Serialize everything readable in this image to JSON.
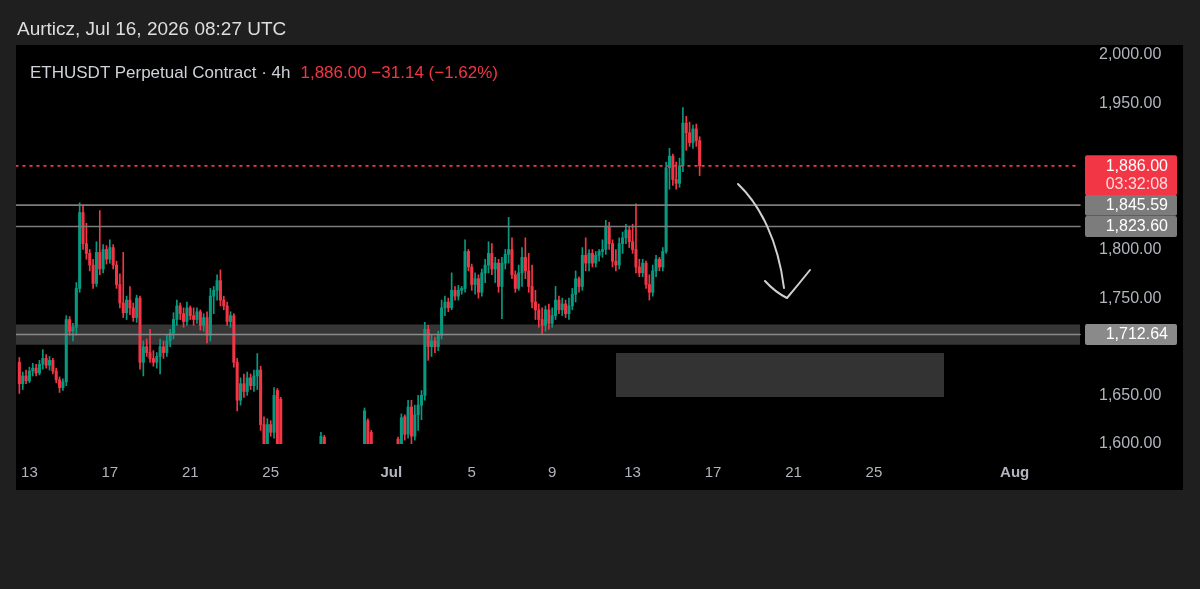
{
  "chart_data": {
    "type": "candlestick",
    "title": "ETHUSDT Perpetual Contract · 4h",
    "subtitle": "1,886.00 −31.14 (−1.62%)",
    "annotations": [
      "Aurticz, Jul 16, 2026 08:27 UTC",
      "03:32:08"
    ],
    "x": [
      "2026-06-12T12:00",
      "2026-06-12T16:00",
      "2026-06-12T20:00",
      "2026-06-13T00:00",
      "2026-06-13T04:00",
      "2026-06-13T08:00",
      "2026-06-13T12:00",
      "2026-06-13T16:00",
      "2026-06-13T20:00",
      "2026-06-14T00:00",
      "2026-06-14T04:00",
      "2026-06-14T08:00",
      "2026-06-14T12:00",
      "2026-06-14T16:00",
      "2026-06-14T20:00",
      "2026-06-15T00:00",
      "2026-06-15T04:00",
      "2026-06-15T08:00",
      "2026-06-15T12:00",
      "2026-06-15T16:00",
      "2026-06-15T20:00",
      "2026-06-16T00:00",
      "2026-06-16T04:00",
      "2026-06-16T08:00",
      "2026-06-16T12:00",
      "2026-06-16T16:00",
      "2026-06-16T20:00",
      "2026-06-17T00:00",
      "2026-06-17T04:00",
      "2026-06-17T08:00",
      "2026-06-17T12:00",
      "2026-06-17T16:00",
      "2026-06-17T20:00",
      "2026-06-18T00:00",
      "2026-06-18T04:00",
      "2026-06-18T08:00",
      "2026-06-18T12:00",
      "2026-06-18T16:00",
      "2026-06-18T20:00",
      "2026-06-19T00:00",
      "2026-06-19T04:00",
      "2026-06-19T08:00",
      "2026-06-19T12:00",
      "2026-06-19T16:00",
      "2026-06-19T20:00",
      "2026-06-20T00:00",
      "2026-06-20T04:00",
      "2026-06-20T08:00",
      "2026-06-20T12:00",
      "2026-06-20T16:00",
      "2026-06-20T20:00",
      "2026-06-21T00:00",
      "2026-06-21T04:00",
      "2026-06-21T08:00",
      "2026-06-21T12:00",
      "2026-06-21T16:00",
      "2026-06-21T20:00",
      "2026-06-22T00:00",
      "2026-06-22T04:00",
      "2026-06-22T08:00",
      "2026-06-22T12:00",
      "2026-06-22T16:00",
      "2026-06-22T20:00",
      "2026-06-23T00:00",
      "2026-06-23T04:00",
      "2026-06-23T08:00",
      "2026-06-23T12:00",
      "2026-06-23T16:00",
      "2026-06-23T20:00",
      "2026-06-24T00:00",
      "2026-06-24T04:00",
      "2026-06-24T08:00",
      "2026-06-24T12:00",
      "2026-06-24T16:00",
      "2026-06-24T20:00",
      "2026-06-25T00:00",
      "2026-06-25T04:00",
      "2026-06-25T08:00",
      "2026-06-25T12:00",
      "2026-06-27T12:00",
      "2026-06-27T16:00",
      "2026-06-29T16:00",
      "2026-06-29T20:00",
      "2026-06-30T00:00",
      "2026-07-01T08:00",
      "2026-07-01T12:00",
      "2026-07-01T16:00",
      "2026-07-01T20:00",
      "2026-07-02T00:00",
      "2026-07-02T04:00",
      "2026-07-02T08:00",
      "2026-07-02T12:00",
      "2026-07-02T16:00",
      "2026-07-02T20:00",
      "2026-07-03T00:00",
      "2026-07-03T04:00",
      "2026-07-03T08:00",
      "2026-07-03T12:00",
      "2026-07-03T16:00",
      "2026-07-03T20:00",
      "2026-07-04T00:00",
      "2026-07-04T04:00",
      "2026-07-04T08:00",
      "2026-07-04T12:00",
      "2026-07-04T16:00",
      "2026-07-04T20:00",
      "2026-07-05T00:00",
      "2026-07-05T04:00",
      "2026-07-05T08:00",
      "2026-07-05T12:00",
      "2026-07-05T16:00",
      "2026-07-05T20:00",
      "2026-07-06T00:00",
      "2026-07-06T04:00",
      "2026-07-06T08:00",
      "2026-07-06T12:00",
      "2026-07-06T16:00",
      "2026-07-06T20:00",
      "2026-07-07T00:00",
      "2026-07-07T04:00",
      "2026-07-07T08:00",
      "2026-07-07T12:00",
      "2026-07-07T16:00",
      "2026-07-07T20:00",
      "2026-07-08T00:00",
      "2026-07-08T04:00",
      "2026-07-08T08:00",
      "2026-07-08T12:00",
      "2026-07-08T16:00",
      "2026-07-08T20:00",
      "2026-07-09T00:00",
      "2026-07-09T04:00",
      "2026-07-09T08:00",
      "2026-07-09T12:00",
      "2026-07-09T16:00",
      "2026-07-09T20:00",
      "2026-07-10T00:00",
      "2026-07-10T04:00",
      "2026-07-10T08:00",
      "2026-07-10T12:00",
      "2026-07-10T16:00",
      "2026-07-10T20:00",
      "2026-07-11T00:00",
      "2026-07-11T04:00",
      "2026-07-11T08:00",
      "2026-07-11T12:00",
      "2026-07-11T16:00",
      "2026-07-11T20:00",
      "2026-07-12T00:00",
      "2026-07-12T04:00",
      "2026-07-12T08:00",
      "2026-07-12T12:00",
      "2026-07-12T16:00",
      "2026-07-12T20:00",
      "2026-07-13T00:00",
      "2026-07-13T04:00",
      "2026-07-13T08:00",
      "2026-07-13T12:00",
      "2026-07-13T16:00",
      "2026-07-13T20:00",
      "2026-07-14T00:00",
      "2026-07-14T04:00",
      "2026-07-14T08:00",
      "2026-07-14T12:00",
      "2026-07-14T16:00",
      "2026-07-14T20:00",
      "2026-07-15T00:00",
      "2026-07-15T04:00",
      "2026-07-15T08:00",
      "2026-07-15T12:00",
      "2026-07-15T16:00",
      "2026-07-15T20:00",
      "2026-07-16T00:00",
      "2026-07-16T04:00",
      "2026-07-16T08:00"
    ],
    "ohlc": [
      [
        1684,
        1689,
        1652,
        1662
      ],
      [
        1662,
        1674,
        1656,
        1670
      ],
      [
        1670,
        1676,
        1662,
        1665
      ],
      [
        1665,
        1679,
        1663,
        1675
      ],
      [
        1675,
        1683,
        1670,
        1678
      ],
      [
        1678,
        1682,
        1670,
        1673
      ],
      [
        1673,
        1686,
        1671,
        1682
      ],
      [
        1682,
        1697,
        1677,
        1688
      ],
      [
        1688,
        1692,
        1678,
        1681
      ],
      [
        1681,
        1690,
        1676,
        1686
      ],
      [
        1686,
        1688,
        1672,
        1675
      ],
      [
        1675,
        1678,
        1663,
        1666
      ],
      [
        1666,
        1669,
        1653,
        1658
      ],
      [
        1658,
        1667,
        1655,
        1664
      ],
      [
        1664,
        1732,
        1660,
        1728
      ],
      [
        1728,
        1731,
        1712,
        1716
      ],
      [
        1716,
        1724,
        1706,
        1720
      ],
      [
        1720,
        1766,
        1712,
        1760
      ],
      [
        1760,
        1848,
        1756,
        1838
      ],
      [
        1838,
        1846,
        1800,
        1806
      ],
      [
        1806,
        1827,
        1790,
        1796
      ],
      [
        1796,
        1800,
        1778,
        1784
      ],
      [
        1784,
        1790,
        1760,
        1765
      ],
      [
        1765,
        1808,
        1762,
        1797
      ],
      [
        1797,
        1840,
        1774,
        1780
      ],
      [
        1780,
        1805,
        1776,
        1800
      ],
      [
        1800,
        1804,
        1785,
        1790
      ],
      [
        1790,
        1810,
        1786,
        1802
      ],
      [
        1802,
        1805,
        1780,
        1784
      ],
      [
        1784,
        1788,
        1760,
        1764
      ],
      [
        1764,
        1775,
        1740,
        1745
      ],
      [
        1745,
        1797,
        1730,
        1735
      ],
      [
        1735,
        1752,
        1728,
        1748
      ],
      [
        1748,
        1762,
        1733,
        1740
      ],
      [
        1740,
        1745,
        1726,
        1730
      ],
      [
        1730,
        1753,
        1725,
        1750
      ],
      [
        1750,
        1752,
        1677,
        1684
      ],
      [
        1684,
        1706,
        1670,
        1700
      ],
      [
        1700,
        1708,
        1690,
        1694
      ],
      [
        1694,
        1718,
        1684,
        1688
      ],
      [
        1688,
        1696,
        1680,
        1684
      ],
      [
        1684,
        1694,
        1678,
        1690
      ],
      [
        1690,
        1708,
        1672,
        1700
      ],
      [
        1700,
        1706,
        1688,
        1694
      ],
      [
        1694,
        1712,
        1690,
        1706
      ],
      [
        1706,
        1718,
        1700,
        1714
      ],
      [
        1714,
        1735,
        1708,
        1728
      ],
      [
        1728,
        1748,
        1722,
        1742
      ],
      [
        1742,
        1745,
        1728,
        1734
      ],
      [
        1734,
        1740,
        1720,
        1726
      ],
      [
        1726,
        1746,
        1722,
        1740
      ],
      [
        1740,
        1742,
        1728,
        1732
      ],
      [
        1732,
        1740,
        1722,
        1728
      ],
      [
        1728,
        1740,
        1724,
        1736
      ],
      [
        1736,
        1738,
        1717,
        1722
      ],
      [
        1722,
        1734,
        1716,
        1730
      ],
      [
        1730,
        1736,
        1704,
        1712
      ],
      [
        1712,
        1760,
        1706,
        1752
      ],
      [
        1752,
        1762,
        1734,
        1758
      ],
      [
        1758,
        1774,
        1748,
        1768
      ],
      [
        1768,
        1779,
        1742,
        1748
      ],
      [
        1748,
        1752,
        1738,
        1742
      ],
      [
        1742,
        1746,
        1722,
        1726
      ],
      [
        1726,
        1736,
        1720,
        1732
      ],
      [
        1732,
        1734,
        1679,
        1684
      ],
      [
        1684,
        1688,
        1634,
        1645
      ],
      [
        1645,
        1668,
        1640,
        1662
      ],
      [
        1662,
        1672,
        1648,
        1654
      ],
      [
        1654,
        1674,
        1650,
        1668
      ],
      [
        1668,
        1672,
        1656,
        1660
      ],
      [
        1660,
        1676,
        1654,
        1670
      ],
      [
        1670,
        1693,
        1656,
        1676
      ],
      [
        1676,
        1680,
        1614,
        1620
      ],
      [
        1620,
        1628,
        1600,
        1600
      ],
      [
        1600,
        1626,
        1600,
        1620
      ],
      [
        1620,
        1624,
        1608,
        1612
      ],
      [
        1612,
        1658,
        1606,
        1650
      ],
      [
        1655,
        1657,
        1600,
        1600
      ],
      [
        1646,
        1648,
        1600,
        1600
      ],
      [
        1600,
        1612,
        1600,
        1608
      ],
      [
        1607,
        1609,
        1600,
        1600
      ],
      [
        1600,
        1637,
        1600,
        1634
      ],
      [
        1624,
        1626,
        1600,
        1600
      ],
      [
        1612,
        1614,
        1600,
        1600
      ],
      [
        1605,
        1607,
        1600,
        1600
      ],
      [
        1600,
        1631,
        1600,
        1627
      ],
      [
        1628,
        1630,
        1604,
        1610
      ],
      [
        1610,
        1645,
        1606,
        1638
      ],
      [
        1638,
        1645,
        1600,
        1608
      ],
      [
        1608,
        1640,
        1604,
        1630
      ],
      [
        1630,
        1650,
        1614,
        1640
      ],
      [
        1640,
        1655,
        1625,
        1650
      ],
      [
        1650,
        1725,
        1645,
        1718
      ],
      [
        1718,
        1722,
        1686,
        1700
      ],
      [
        1700,
        1712,
        1690,
        1706
      ],
      [
        1706,
        1710,
        1694,
        1700
      ],
      [
        1700,
        1716,
        1696,
        1712
      ],
      [
        1712,
        1748,
        1708,
        1740
      ],
      [
        1740,
        1752,
        1732,
        1746
      ],
      [
        1746,
        1750,
        1736,
        1740
      ],
      [
        1740,
        1776,
        1738,
        1758
      ],
      [
        1758,
        1762,
        1748,
        1752
      ],
      [
        1752,
        1763,
        1748,
        1758
      ],
      [
        1758,
        1762,
        1754,
        1760
      ],
      [
        1760,
        1810,
        1756,
        1798
      ],
      [
        1798,
        1800,
        1778,
        1782
      ],
      [
        1782,
        1785,
        1758,
        1764
      ],
      [
        1764,
        1776,
        1754,
        1770
      ],
      [
        1770,
        1774,
        1750,
        1756
      ],
      [
        1756,
        1780,
        1752,
        1776
      ],
      [
        1776,
        1790,
        1766,
        1784
      ],
      [
        1784,
        1808,
        1776,
        1796
      ],
      [
        1796,
        1806,
        1774,
        1780
      ],
      [
        1780,
        1792,
        1766,
        1786
      ],
      [
        1786,
        1790,
        1756,
        1762
      ],
      [
        1762,
        1792,
        1729,
        1786
      ],
      [
        1786,
        1800,
        1780,
        1795
      ],
      [
        1795,
        1833,
        1786,
        1800
      ],
      [
        1800,
        1812,
        1770,
        1774
      ],
      [
        1774,
        1778,
        1756,
        1760
      ],
      [
        1760,
        1784,
        1758,
        1776
      ],
      [
        1776,
        1802,
        1762,
        1792
      ],
      [
        1792,
        1812,
        1770,
        1778
      ],
      [
        1778,
        1796,
        1756,
        1762
      ],
      [
        1762,
        1784,
        1740,
        1746
      ],
      [
        1746,
        1758,
        1728,
        1738
      ],
      [
        1738,
        1744,
        1720,
        1728
      ],
      [
        1728,
        1740,
        1712.64,
        1722
      ],
      [
        1722,
        1742,
        1716,
        1738
      ],
      [
        1738,
        1744,
        1718,
        1724
      ],
      [
        1724,
        1740,
        1720,
        1732
      ],
      [
        1732,
        1762,
        1728,
        1748
      ],
      [
        1748,
        1752,
        1734,
        1738
      ],
      [
        1738,
        1750,
        1732,
        1744
      ],
      [
        1744,
        1748,
        1730,
        1734
      ],
      [
        1734,
        1750,
        1728,
        1742
      ],
      [
        1742,
        1760,
        1738,
        1754
      ],
      [
        1754,
        1778,
        1746,
        1770
      ],
      [
        1770,
        1772,
        1756,
        1762
      ],
      [
        1762,
        1802,
        1758,
        1794
      ],
      [
        1794,
        1812,
        1778,
        1786
      ],
      [
        1786,
        1800,
        1778,
        1796
      ],
      [
        1796,
        1800,
        1782,
        1786
      ],
      [
        1786,
        1798,
        1782,
        1794
      ],
      [
        1794,
        1800,
        1788,
        1798
      ],
      [
        1798,
        1810,
        1792,
        1800
      ],
      [
        1800,
        1830,
        1795,
        1824
      ],
      [
        1824,
        1828,
        1800,
        1806
      ],
      [
        1806,
        1810,
        1782,
        1788
      ],
      [
        1788,
        1800,
        1778,
        1784
      ],
      [
        1784,
        1812,
        1780,
        1806
      ],
      [
        1806,
        1818,
        1796,
        1812
      ],
      [
        1812,
        1826,
        1806,
        1820
      ],
      [
        1820,
        1824,
        1802,
        1808
      ],
      [
        1808,
        1826,
        1796,
        1800
      ],
      [
        1800,
        1847,
        1776,
        1782
      ],
      [
        1782,
        1790,
        1772,
        1776
      ],
      [
        1776,
        1790,
        1772,
        1786
      ],
      [
        1786,
        1788,
        1760,
        1764
      ],
      [
        1764,
        1774,
        1748,
        1756
      ],
      [
        1756,
        1784,
        1752,
        1778
      ],
      [
        1778,
        1794,
        1772,
        1790
      ],
      [
        1790,
        1792,
        1778,
        1782
      ],
      [
        1782,
        1802,
        1778,
        1798
      ],
      [
        1798,
        1890,
        1796,
        1884
      ],
      [
        1884,
        1904,
        1862,
        1896
      ],
      [
        1896,
        1898,
        1866,
        1872
      ],
      [
        1872,
        1890,
        1862,
        1868
      ],
      [
        1868,
        1894,
        1864,
        1886
      ],
      [
        1886,
        1946,
        1880,
        1930
      ],
      [
        1930,
        1937,
        1902,
        1920
      ],
      [
        1920,
        1931,
        1906,
        1910
      ],
      [
        1910,
        1928,
        1904,
        1924
      ],
      [
        1924,
        1929,
        1906,
        1912
      ],
      [
        1912,
        1916,
        1876,
        1886
      ]
    ],
    "colors": [
      "#f23645",
      "#089981",
      "#f23645",
      "#089981",
      "#089981",
      "#f23645",
      "#089981",
      "#089981",
      "#f23645",
      "#089981",
      "#f23645",
      "#f23645",
      "#f23645",
      "#089981",
      "#089981",
      "#f23645",
      "#089981",
      "#089981",
      "#089981",
      "#f23645",
      "#f23645",
      "#f23645",
      "#f23645",
      "#089981",
      "#f23645",
      "#089981",
      "#f23645",
      "#089981",
      "#f23645",
      "#f23645",
      "#f23645",
      "#f23645",
      "#089981",
      "#f23645",
      "#f23645",
      "#089981",
      "#f23645",
      "#089981",
      "#f23645",
      "#f23645",
      "#f23645",
      "#089981",
      "#089981",
      "#f23645",
      "#089981",
      "#089981",
      "#089981",
      "#089981",
      "#f23645",
      "#f23645",
      "#089981",
      "#f23645",
      "#f23645",
      "#089981",
      "#f23645",
      "#089981",
      "#f23645",
      "#089981",
      "#089981",
      "#089981",
      "#f23645",
      "#f23645",
      "#f23645",
      "#089981",
      "#f23645",
      "#f23645",
      "#089981",
      "#f23645",
      "#089981",
      "#f23645",
      "#089981",
      "#089981",
      "#f23645",
      "#f23645",
      "#089981",
      "#f23645",
      "#089981",
      "#f23645",
      "#f23645",
      "#089981",
      "#f23645",
      "#089981",
      "#f23645",
      "#f23645",
      "#f23645",
      "#089981",
      "#f23645",
      "#089981",
      "#f23645",
      "#089981",
      "#089981",
      "#089981",
      "#089981",
      "#f23645",
      "#089981",
      "#f23645",
      "#089981",
      "#089981",
      "#089981",
      "#f23645",
      "#089981",
      "#f23645",
      "#089981",
      "#089981",
      "#089981",
      "#f23645",
      "#f23645",
      "#089981",
      "#f23645",
      "#089981",
      "#089981",
      "#089981",
      "#f23645",
      "#089981",
      "#f23645",
      "#089981",
      "#089981",
      "#089981",
      "#f23645",
      "#f23645",
      "#089981",
      "#089981",
      "#f23645",
      "#f23645",
      "#f23645",
      "#f23645",
      "#f23645",
      "#f23645",
      "#089981",
      "#f23645",
      "#089981",
      "#089981",
      "#f23645",
      "#089981",
      "#f23645",
      "#089981",
      "#089981",
      "#089981",
      "#f23645",
      "#089981",
      "#f23645",
      "#089981",
      "#f23645",
      "#089981",
      "#089981",
      "#089981",
      "#089981",
      "#f23645",
      "#f23645",
      "#f23645",
      "#089981",
      "#089981",
      "#089981",
      "#f23645",
      "#f23645",
      "#f23645",
      "#f23645",
      "#089981",
      "#f23645",
      "#f23645",
      "#089981",
      "#089981",
      "#f23645",
      "#089981",
      "#089981",
      "#089981",
      "#f23645",
      "#f23645",
      "#089981",
      "#089981",
      "#f23645",
      "#f23645",
      "#089981",
      "#f23645",
      "#f23645"
    ],
    "xlim": [
      "2026-06-12T08:00",
      "2026-08-04T06:00"
    ],
    "xticks": [
      {
        "value": "2026-06-13",
        "label": "13"
      },
      {
        "value": "2026-06-17",
        "label": "17"
      },
      {
        "value": "2026-06-21",
        "label": "21"
      },
      {
        "value": "2026-06-25",
        "label": "25"
      },
      {
        "value": "2026-07-01",
        "label": "Jul"
      },
      {
        "value": "2026-07-05",
        "label": "5"
      },
      {
        "value": "2026-07-09",
        "label": "9"
      },
      {
        "value": "2026-07-13",
        "label": "13"
      },
      {
        "value": "2026-07-17",
        "label": "17"
      },
      {
        "value": "2026-07-21",
        "label": "21"
      },
      {
        "value": "2026-07-25",
        "label": "25"
      },
      {
        "value": "2026-08-01",
        "label": "Aug"
      }
    ],
    "ylim": [
      1600,
      2000
    ],
    "yticks": [
      {
        "value": 1600,
        "label": "1,600.00"
      },
      {
        "value": 1650,
        "label": "1,650.00"
      },
      {
        "value": 1750,
        "label": "1,750.00"
      },
      {
        "value": 1800,
        "label": "1,800.00"
      },
      {
        "value": 1950,
        "label": "1,950.00"
      },
      {
        "value": 2000,
        "label": "2,000.00"
      }
    ],
    "bands": [
      {
        "axis": "y",
        "from": 1702,
        "to": 1723,
        "color": "#363636"
      }
    ],
    "ref_lines": [
      {
        "axis": "y",
        "value": 1845.59,
        "label": "1,845.59",
        "color": "#7c7c7c"
      },
      {
        "axis": "y",
        "value": 1823.6,
        "label": "1,823.60",
        "color": "#7c7c7c"
      },
      {
        "axis": "y",
        "value": 1712.64,
        "label": "1,712.64",
        "color": "#8a8a8a"
      },
      {
        "axis": "y",
        "value": 1886,
        "label": "1,886.00",
        "color": "#f23645",
        "line_style": "dotted"
      }
    ]
  }
}
